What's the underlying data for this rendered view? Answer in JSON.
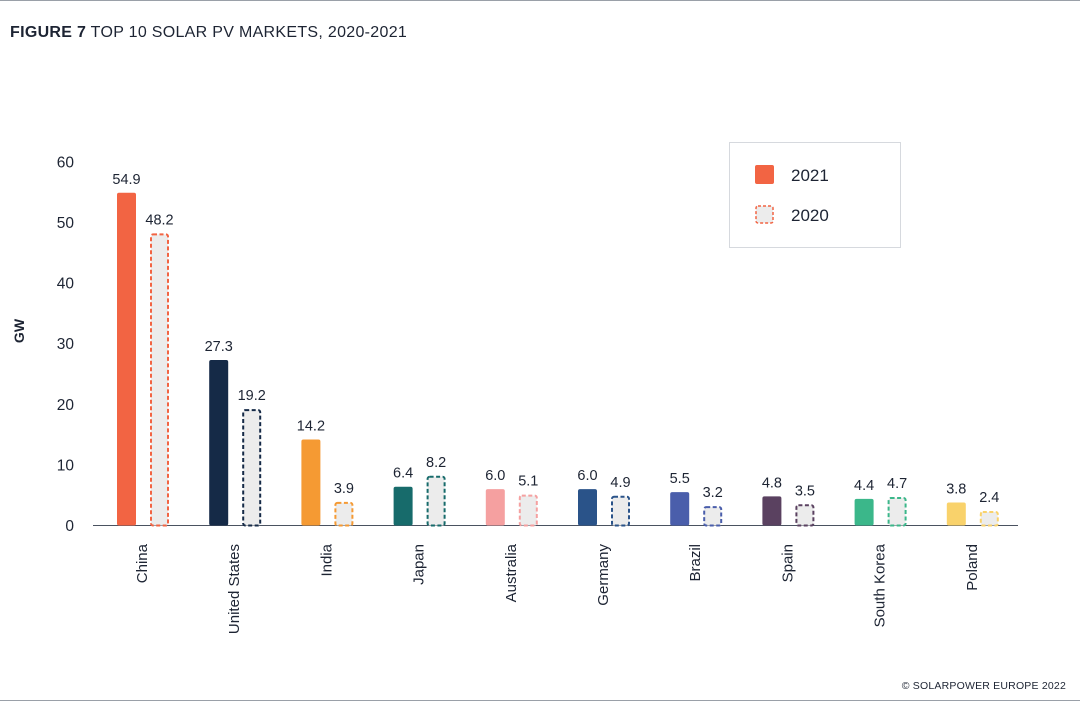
{
  "figure": {
    "label": "FIGURE 7",
    "title": "TOP 10 SOLAR PV MARKETS, 2020-2021",
    "copyright": "© SOLARPOWER EUROPE 2022"
  },
  "chart_data": {
    "type": "bar",
    "title": "TOP 10 SOLAR PV MARKETS, 2020-2021",
    "xlabel": "",
    "ylabel": "GW",
    "ylim": [
      0,
      60
    ],
    "yticks": [
      0,
      10,
      20,
      30,
      40,
      50,
      60
    ],
    "grid": false,
    "legend_position": "top-right",
    "categories": [
      "China",
      "United States",
      "India",
      "Japan",
      "Australia",
      "Germany",
      "Brazil",
      "Spain",
      "South Korea",
      "Poland"
    ],
    "category_colors": [
      "#f26443",
      "#152a47",
      "#f59a33",
      "#176b6b",
      "#f5a0a0",
      "#2a5389",
      "#4a5eab",
      "#5a4160",
      "#3bb78a",
      "#f9d26b"
    ],
    "series": [
      {
        "name": "2021",
        "style": "solid",
        "values": [
          54.9,
          27.3,
          14.2,
          6.4,
          6.0,
          6.0,
          5.5,
          4.8,
          4.4,
          3.8
        ],
        "labels": [
          "54.9",
          "27.3",
          "14.2",
          "6.4",
          "6.0",
          "6.0",
          "5.5",
          "4.8",
          "4.4",
          "3.8"
        ]
      },
      {
        "name": "2020",
        "style": "dashed",
        "fill": "#ececec",
        "values": [
          48.2,
          19.2,
          3.9,
          8.2,
          5.1,
          4.9,
          3.2,
          3.5,
          4.7,
          2.4
        ],
        "labels": [
          "48.2",
          "19.2",
          "3.9",
          "8.2",
          "5.1",
          "4.9",
          "3.2",
          "3.5",
          "4.7",
          "2.4"
        ]
      }
    ],
    "legend": [
      {
        "label": "2021",
        "color": "#f26443",
        "style": "solid"
      },
      {
        "label": "2020",
        "color": "#f26443",
        "style": "dashed"
      }
    ]
  }
}
